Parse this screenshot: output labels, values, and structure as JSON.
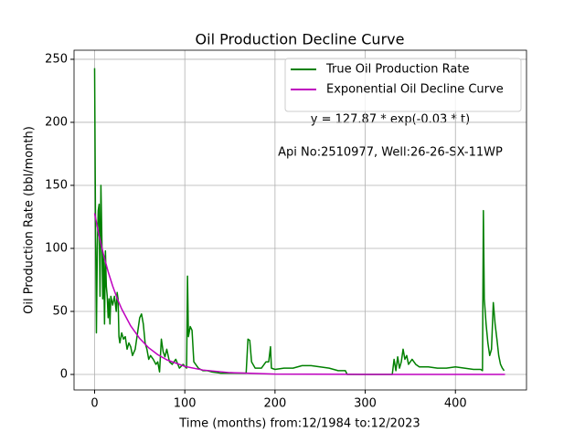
{
  "chart_data": {
    "type": "line",
    "title": "Oil Production Decline Curve",
    "xlabel": "Time (months) from:12/1984 to:12/2023",
    "ylabel": "Oil Production Rate (bbl/month)",
    "annotations": [
      "y = 127.87 * exp(-0.03 * t)",
      "Api No:2510977, Well:26-26-SX-11WP"
    ],
    "xlim": [
      -22.8,
      478.8
    ],
    "ylim": [
      -12.3,
      257.2
    ],
    "xticks": [
      0,
      100,
      200,
      300,
      400
    ],
    "yticks": [
      0,
      50,
      100,
      150,
      200,
      250
    ],
    "grid": true,
    "legend": "upper right",
    "series": [
      {
        "name": "True Oil Production Rate",
        "color": "#008000",
        "x": [
          0,
          1,
          2,
          3,
          4,
          5,
          6,
          7,
          8,
          9,
          10,
          11,
          12,
          13,
          14,
          15,
          16,
          17,
          18,
          20,
          22,
          24,
          25,
          26,
          27,
          28,
          30,
          32,
          34,
          36,
          38,
          40,
          42,
          45,
          48,
          50,
          52,
          54,
          56,
          58,
          60,
          62,
          65,
          68,
          70,
          72,
          74,
          76,
          78,
          80,
          83,
          86,
          90,
          94,
          98,
          102,
          103,
          104,
          106,
          108,
          110,
          115,
          120,
          125,
          130,
          140,
          150,
          160,
          168,
          170,
          172,
          174,
          178,
          185,
          190,
          193,
          195,
          196,
          200,
          210,
          220,
          230,
          240,
          250,
          260,
          270,
          278,
          280,
          290,
          300,
          310,
          320,
          330,
          332,
          334,
          336,
          338,
          340,
          342,
          344,
          346,
          348,
          352,
          356,
          360,
          370,
          380,
          390,
          400,
          410,
          420,
          428,
          430,
          431,
          432,
          434,
          436,
          438,
          440,
          442,
          444,
          446,
          448,
          450,
          452,
          454
        ],
        "values": [
          243,
          120,
          33,
          100,
          130,
          135,
          62,
          150,
          110,
          60,
          95,
          40,
          98,
          70,
          62,
          45,
          60,
          40,
          62,
          55,
          62,
          50,
          65,
          60,
          30,
          25,
          33,
          28,
          30,
          20,
          25,
          22,
          15,
          20,
          35,
          45,
          48,
          40,
          25,
          20,
          12,
          15,
          12,
          8,
          10,
          2,
          28,
          18,
          14,
          20,
          10,
          8,
          12,
          5,
          8,
          5,
          78,
          30,
          38,
          35,
          10,
          5,
          3,
          3,
          2,
          1,
          1,
          1,
          1,
          28,
          27,
          10,
          5,
          5,
          10,
          10,
          22,
          5,
          4,
          5,
          5,
          7,
          7,
          6,
          5,
          3,
          3,
          0,
          0,
          0,
          0,
          0,
          0,
          12,
          3,
          14,
          5,
          10,
          20,
          12,
          15,
          8,
          12,
          8,
          6,
          6,
          5,
          5,
          6,
          5,
          4,
          4,
          3,
          130,
          60,
          40,
          25,
          15,
          20,
          57,
          40,
          28,
          15,
          8,
          5,
          3
        ]
      },
      {
        "name": "Exponential Oil Decline Curve",
        "color": "#bf00bf",
        "x": [
          0,
          5,
          10,
          15,
          20,
          25,
          30,
          40,
          50,
          60,
          70,
          80,
          100,
          120,
          150,
          200,
          300,
          455
        ],
        "values": [
          127.87,
          110.06,
          94.73,
          81.53,
          70.18,
          60.4,
          51.99,
          38.51,
          28.53,
          21.14,
          15.66,
          11.6,
          6.37,
          3.5,
          1.42,
          0.32,
          0.02,
          0
        ]
      }
    ]
  }
}
